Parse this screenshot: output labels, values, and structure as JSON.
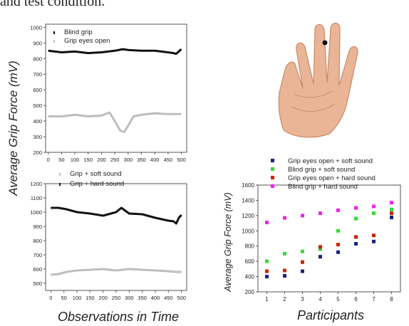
{
  "caption": "and test condition.",
  "shared_ylabel": "Average Grip Force (mV)",
  "colors": {
    "black": "#111111",
    "grey": "#bdbdbd",
    "navy": "#1a237e",
    "green": "#33dd33",
    "red": "#cc2200",
    "magenta": "#ee22ee",
    "skin": "#e9b596",
    "skin_dark": "#c98a68"
  },
  "chart_data": [
    {
      "type": "line",
      "title": "",
      "xlabel": "",
      "ylabel": "",
      "xlim": [
        -10,
        520
      ],
      "ylim": [
        200,
        1020
      ],
      "xticks": [
        0,
        50,
        100,
        150,
        200,
        250,
        300,
        350,
        400,
        450,
        500
      ],
      "yticks": [
        200,
        300,
        400,
        500,
        600,
        700,
        800,
        900,
        1000
      ],
      "legend_placement": "top-left",
      "series": [
        {
          "name": "Blind grip",
          "color": "#111111",
          "x": [
            0,
            50,
            100,
            150,
            200,
            250,
            280,
            300,
            350,
            400,
            450,
            470,
            480,
            490,
            500
          ],
          "y": [
            850,
            840,
            845,
            835,
            840,
            850,
            860,
            855,
            850,
            850,
            840,
            835,
            830,
            845,
            860
          ]
        },
        {
          "name": "Grip eyes open",
          "color": "#bdbdbd",
          "x": [
            0,
            50,
            100,
            150,
            200,
            230,
            250,
            270,
            285,
            300,
            320,
            350,
            400,
            450,
            500
          ],
          "y": [
            430,
            430,
            440,
            430,
            435,
            455,
            400,
            340,
            330,
            370,
            430,
            440,
            450,
            445,
            445
          ]
        }
      ]
    },
    {
      "type": "line",
      "title": "",
      "xlabel": "Observations in Time",
      "ylabel": "",
      "xlim": [
        -20,
        520
      ],
      "ylim": [
        450,
        1200
      ],
      "xticks": [
        0,
        50,
        100,
        150,
        200,
        250,
        300,
        350,
        400,
        450,
        500
      ],
      "yticks": [
        500,
        600,
        700,
        800,
        900,
        1000,
        1100,
        1200
      ],
      "legend_placement": "top-left",
      "series": [
        {
          "name": "Grip + soft sound",
          "color": "#bdbdbd",
          "x": [
            0,
            30,
            60,
            100,
            150,
            200,
            250,
            300,
            350,
            400,
            450,
            480,
            500
          ],
          "y": [
            560,
            565,
            580,
            590,
            595,
            600,
            590,
            600,
            595,
            590,
            585,
            580,
            580
          ]
        },
        {
          "name": "Grip + hard sound",
          "color": "#111111",
          "x": [
            0,
            30,
            60,
            100,
            150,
            200,
            250,
            270,
            300,
            350,
            400,
            450,
            470,
            480,
            490,
            500
          ],
          "y": [
            1030,
            1030,
            1020,
            1000,
            990,
            975,
            1000,
            1030,
            990,
            985,
            960,
            940,
            935,
            920,
            960,
            980
          ]
        }
      ]
    },
    {
      "type": "scatter",
      "title": "",
      "xlabel": "Participants",
      "ylabel": "Average Grip Force (mV)",
      "xlim": [
        0.5,
        8.5
      ],
      "ylim": [
        200,
        1600
      ],
      "xticks": [
        1,
        2,
        3,
        4,
        5,
        6,
        7,
        8
      ],
      "yticks": [
        200,
        400,
        600,
        800,
        1000,
        1200,
        1400,
        1600
      ],
      "legend_placement": "top-left",
      "series": [
        {
          "name": "Grip eyes open + soft sound",
          "color": "#1a237e",
          "x": [
            1,
            2,
            3,
            4,
            5,
            6,
            7,
            8
          ],
          "y": [
            400,
            410,
            470,
            660,
            720,
            830,
            860,
            1175
          ]
        },
        {
          "name": "Blind grip + soft sound",
          "color": "#33dd33",
          "x": [
            1,
            2,
            3,
            4,
            5,
            6,
            7,
            8
          ],
          "y": [
            600,
            700,
            730,
            760,
            1000,
            1160,
            1230,
            1280
          ]
        },
        {
          "name": "Grip eyes open + hard sound",
          "color": "#cc2200",
          "x": [
            1,
            2,
            3,
            4,
            5,
            6,
            7,
            8
          ],
          "y": [
            470,
            480,
            590,
            790,
            820,
            920,
            940,
            1230
          ]
        },
        {
          "name": "Blind grip + hard sound",
          "color": "#ee22ee",
          "x": [
            1,
            2,
            3,
            4,
            5,
            6,
            7,
            8
          ],
          "y": [
            1110,
            1170,
            1200,
            1230,
            1270,
            1300,
            1320,
            1370
          ]
        }
      ]
    }
  ]
}
